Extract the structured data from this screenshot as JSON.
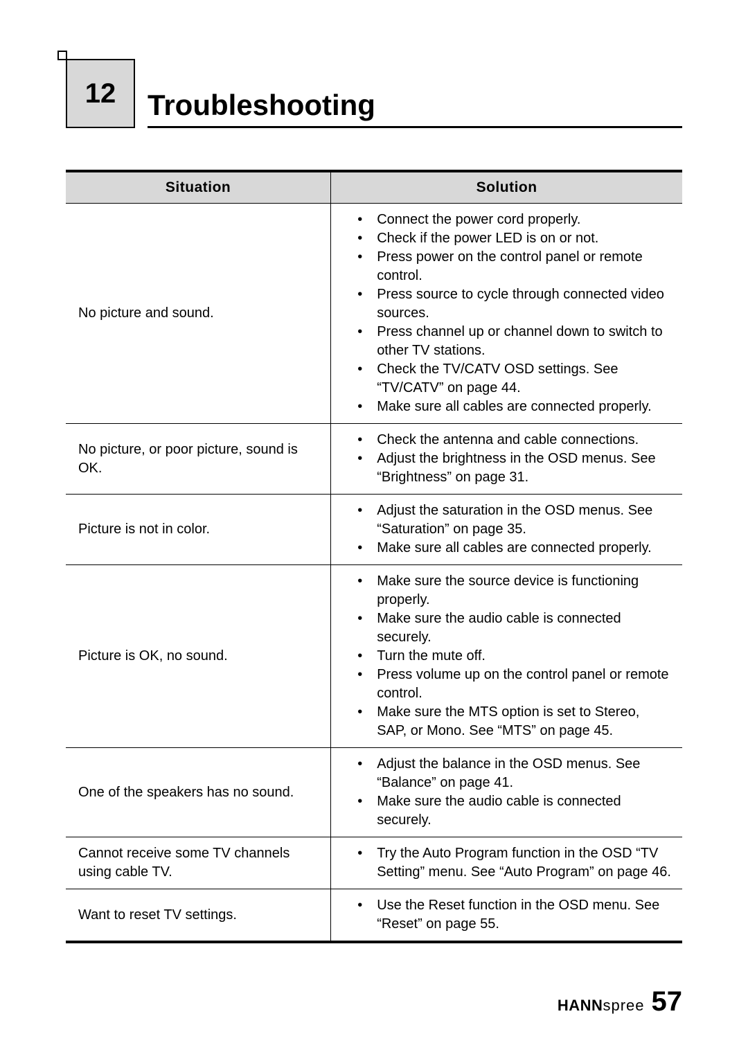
{
  "chapter": {
    "number": "12",
    "title": "Troubleshooting"
  },
  "table": {
    "headers": {
      "situation": "Situation",
      "solution": "Solution"
    },
    "rows": [
      {
        "situation": "No picture and sound.",
        "solutions": [
          "Connect the power cord properly.",
          "Check if the power LED is on or not.",
          "Press power on the control panel or remote control.",
          "Press source to cycle through connected video sources.",
          "Press channel up or channel down to switch to other TV stations.",
          "Check the TV/CATV OSD settings. See “TV/CATV” on page 44.",
          "Make sure all cables are connected properly."
        ]
      },
      {
        "situation": "No picture, or poor picture, sound is OK.",
        "solutions": [
          "Check the antenna and cable connections.",
          "Adjust the brightness in the OSD menus. See “Brightness” on page 31."
        ]
      },
      {
        "situation": "Picture is not in color.",
        "solutions": [
          "Adjust the saturation in the OSD menus. See “Saturation” on page 35.",
          "Make sure all cables are connected properly."
        ]
      },
      {
        "situation": "Picture is OK, no sound.",
        "solutions": [
          "Make sure the source device is functioning properly.",
          "Make sure the audio cable is connected securely.",
          "Turn the mute off.",
          "Press volume up on the control panel or remote control.",
          "Make sure the MTS option is set to Stereo, SAP, or Mono. See “MTS” on page 45."
        ]
      },
      {
        "situation": "One of the speakers has no sound.",
        "solutions": [
          "Adjust the balance in the OSD menus. See “Balance” on page 41.",
          "Make sure the audio cable is connected securely."
        ]
      },
      {
        "situation": "Cannot receive some TV channels using cable TV.",
        "solutions": [
          "Try the Auto Program function in the OSD “TV Setting” menu. See “Auto Program” on page 46."
        ]
      },
      {
        "situation": "Want to reset TV settings.",
        "solutions": [
          "Use the Reset function in the OSD menu. See “Reset” on page 55."
        ]
      }
    ]
  },
  "footer": {
    "brand_bold": "HANN",
    "brand_light": "spree",
    "page_number": "57"
  },
  "colors": {
    "header_bg": "#d8d8d8",
    "border": "#000000",
    "text": "#000000",
    "page_bg": "#ffffff"
  }
}
